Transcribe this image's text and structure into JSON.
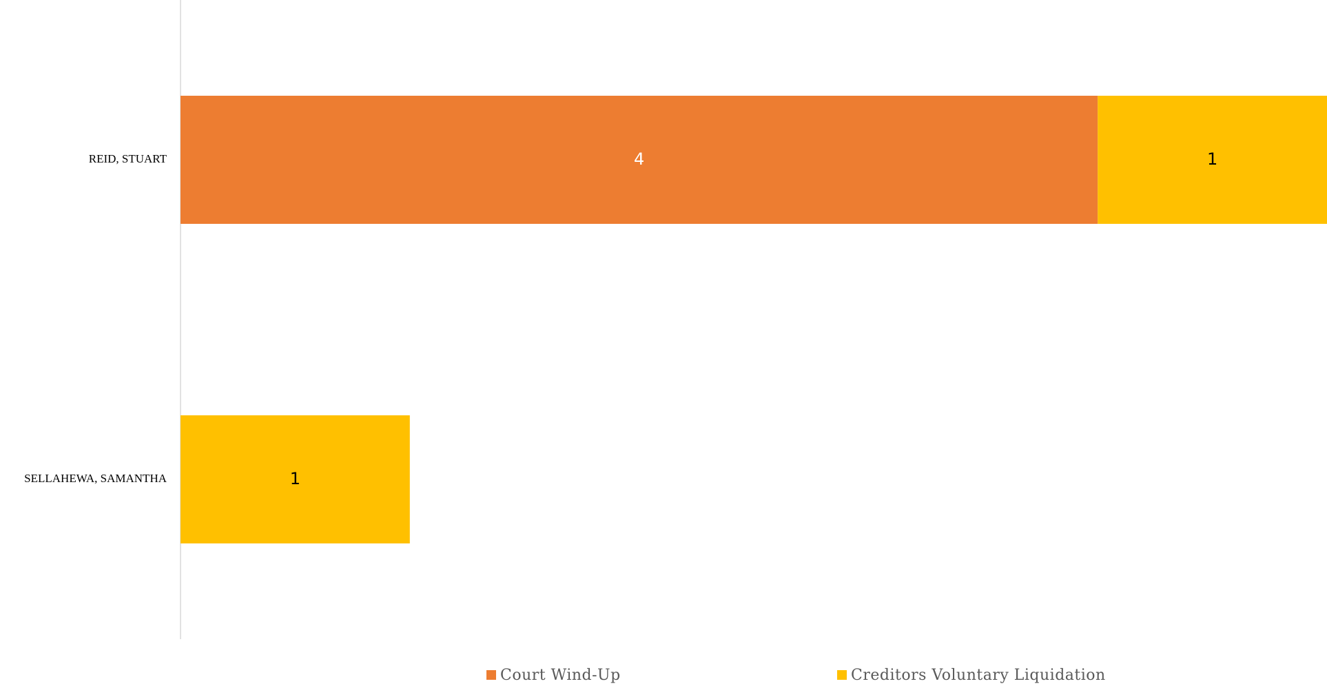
{
  "chart_data": {
    "type": "bar",
    "orientation": "horizontal",
    "stacked": true,
    "categories": [
      "REID, STUART",
      "SELLAHEWA, SAMANTHA"
    ],
    "series": [
      {
        "name": "Court Wind-Up",
        "color": "#ED7D31",
        "label_color": "#FFFFFF",
        "values": [
          4,
          0
        ]
      },
      {
        "name": "Creditors Voluntary Liquidation",
        "color": "#FFC000",
        "label_color": "#000000",
        "values": [
          1,
          1
        ]
      }
    ],
    "xlim": [
      0,
      5
    ],
    "grid": false,
    "legend_position": "bottom",
    "title": "",
    "xlabel": "",
    "ylabel": ""
  }
}
